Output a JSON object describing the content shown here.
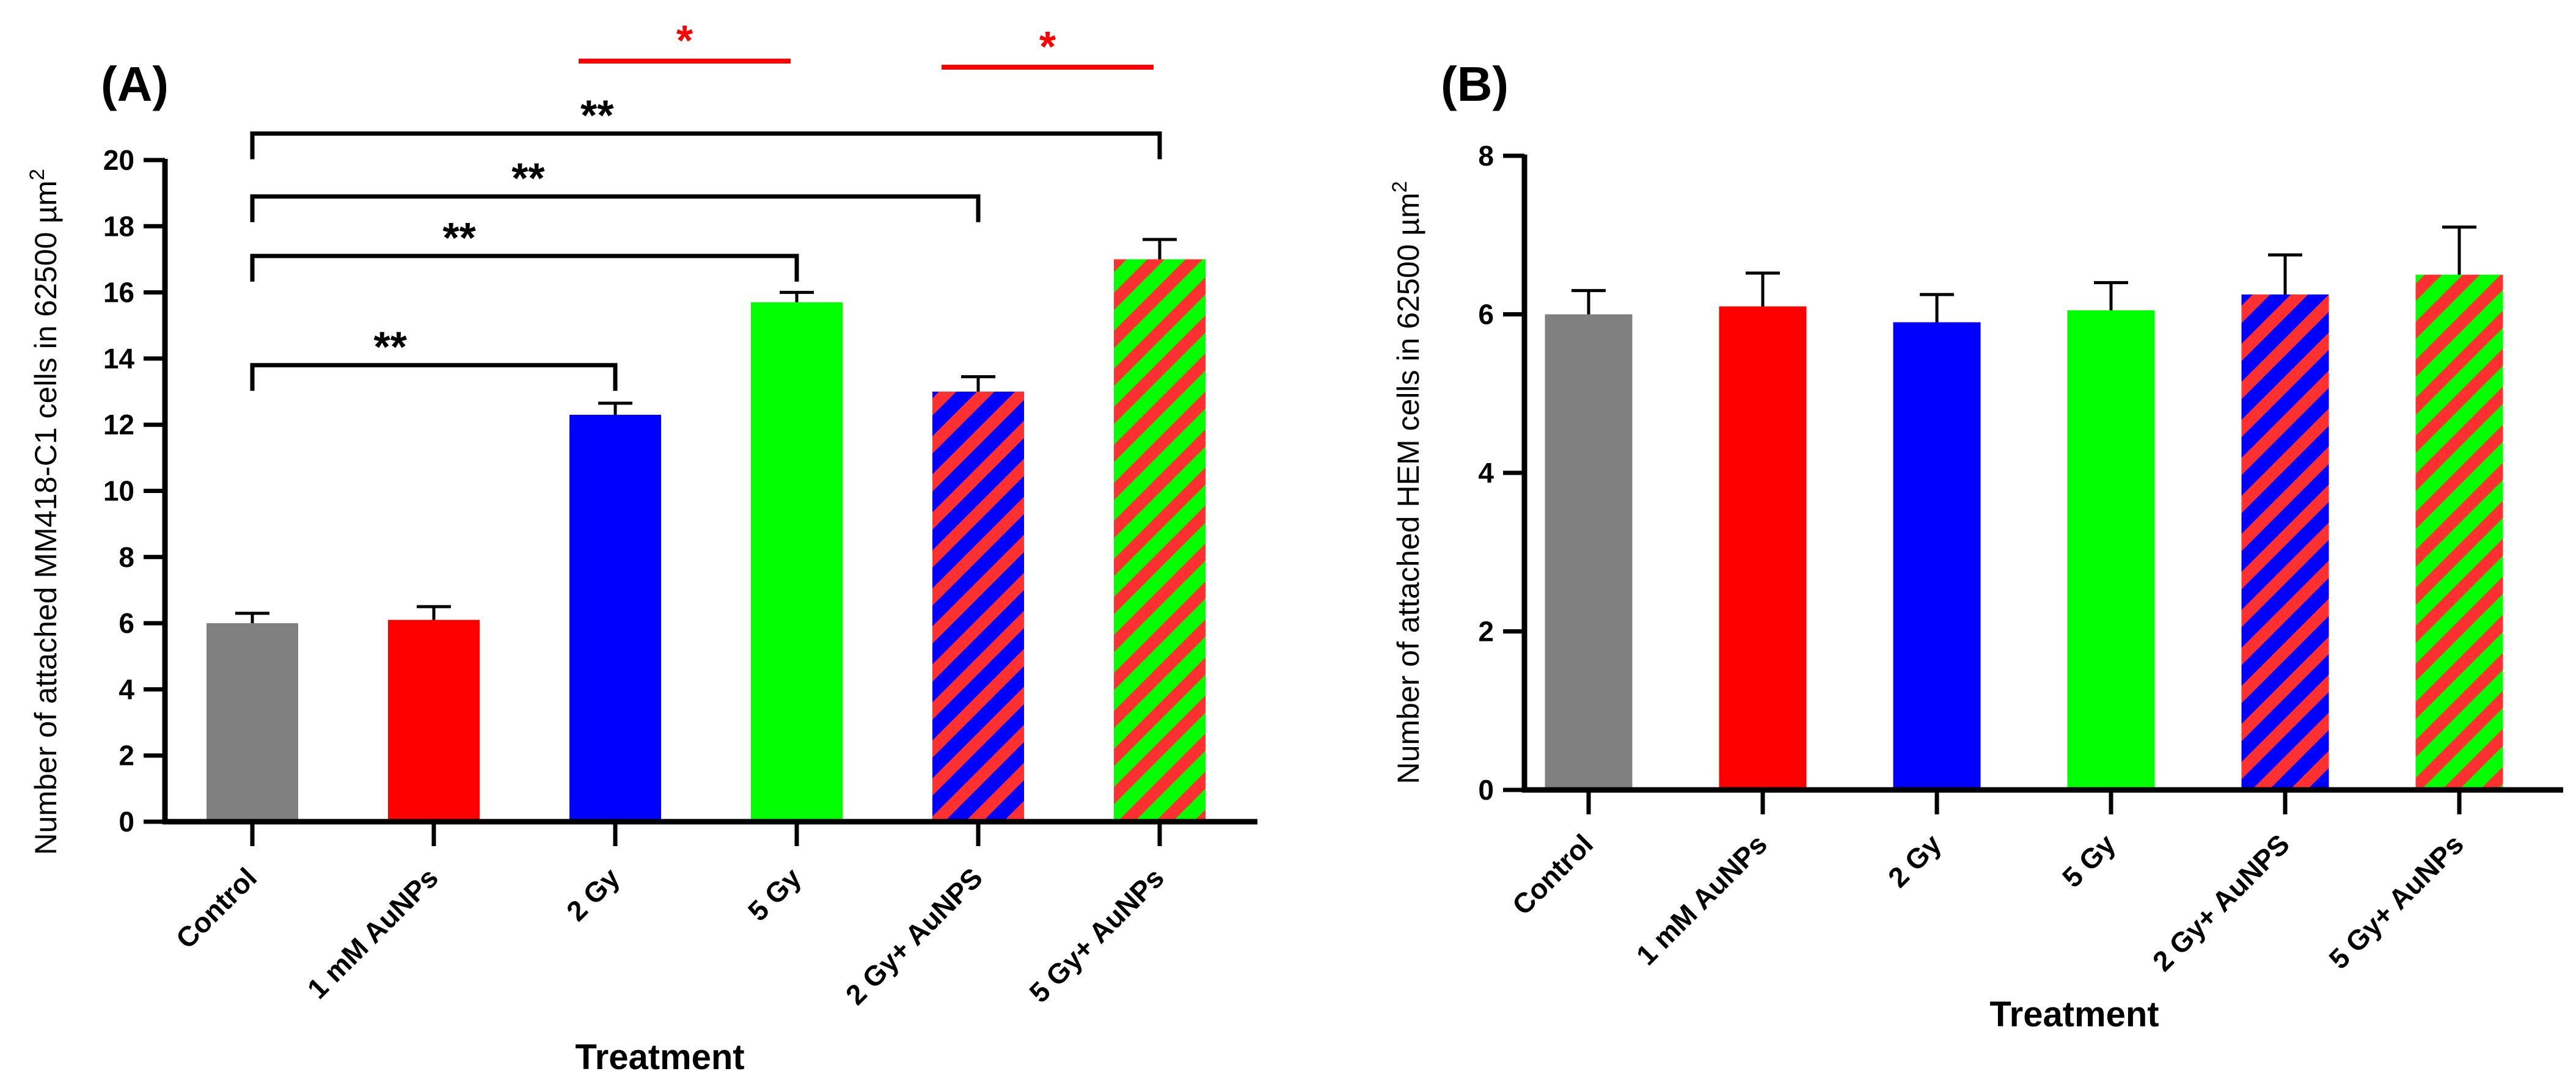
{
  "chart_data": [
    {
      "panel_label": "(A)",
      "type": "bar",
      "categories": [
        "Control",
        "1 mM AuNPs",
        "2 Gy",
        "5 Gy",
        "2 Gy+ AuNPS",
        "5 Gy+ AuNPs"
      ],
      "values": [
        6.0,
        6.1,
        12.3,
        15.7,
        13.0,
        17.0
      ],
      "errors": [
        0.3,
        0.4,
        0.35,
        0.3,
        0.45,
        0.6
      ],
      "bar_colors": [
        "#808080",
        "#ff0000",
        "#0000ff",
        "#00ff00",
        "#0000ff",
        "#00ff00"
      ],
      "bar_hatch": [
        null,
        null,
        null,
        null,
        "#ff3030",
        "#ff3030"
      ],
      "xlabel": "Treatment",
      "ylabel_main": "Number of attached MM418-C1 cells in 62500 µm",
      "ylabel_sup": "2",
      "ylim": [
        0,
        20
      ],
      "yticks": [
        0,
        2,
        4,
        6,
        8,
        10,
        12,
        14,
        16,
        18,
        20
      ],
      "ytick_labels": [
        "0",
        "2",
        "4",
        "6",
        "8",
        "10",
        "12",
        "14",
        "16",
        "18",
        "20"
      ],
      "brackets": [
        {
          "from": 0,
          "to": 2,
          "level": 13.8,
          "label": "**"
        },
        {
          "from": 0,
          "to": 3,
          "level": 17.1,
          "label": "**"
        },
        {
          "from": 0,
          "to": 4,
          "level": 18.9,
          "label": "**"
        },
        {
          "from": 0,
          "to": 5,
          "level": 20.8,
          "label": "**"
        }
      ],
      "comparisons": [
        {
          "from": 2,
          "to": 3,
          "label": "*",
          "color": "#ff0000"
        },
        {
          "from": 4,
          "to": 5,
          "label": "*",
          "color": "#ff0000"
        }
      ]
    },
    {
      "panel_label": "(B)",
      "type": "bar",
      "categories": [
        "Control",
        "1 mM AuNPs",
        "2 Gy",
        "5 Gy",
        "2 Gy+ AuNPS",
        "5 Gy+ AuNPs"
      ],
      "values": [
        6.0,
        6.1,
        5.9,
        6.05,
        6.25,
        6.5
      ],
      "errors": [
        0.3,
        0.42,
        0.35,
        0.35,
        0.5,
        0.6
      ],
      "bar_colors": [
        "#808080",
        "#ff0000",
        "#0000ff",
        "#00ff00",
        "#0000ff",
        "#00ff00"
      ],
      "bar_hatch": [
        null,
        null,
        null,
        null,
        "#ff3030",
        "#ff3030"
      ],
      "xlabel": "Treatment",
      "ylabel_main": "Number of attached HEM cells in 62500 µm",
      "ylabel_sup": "2",
      "ylim": [
        0,
        8
      ],
      "yticks": [
        0,
        2,
        4,
        6,
        8
      ],
      "ytick_labels": [
        "0",
        "2",
        "4",
        "6",
        "8"
      ],
      "brackets": [],
      "comparisons": []
    }
  ]
}
